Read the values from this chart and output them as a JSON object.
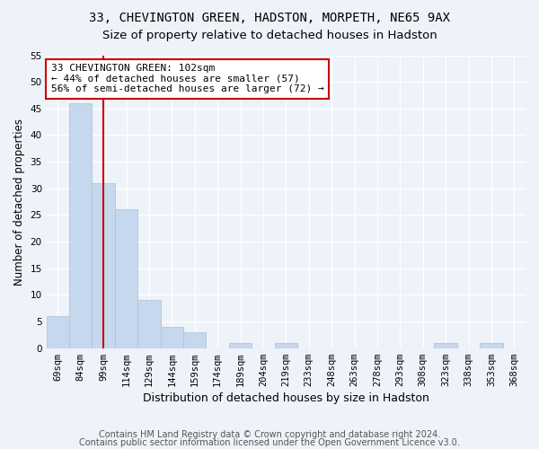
{
  "title1": "33, CHEVINGTON GREEN, HADSTON, MORPETH, NE65 9AX",
  "title2": "Size of property relative to detached houses in Hadston",
  "xlabel": "Distribution of detached houses by size in Hadston",
  "ylabel": "Number of detached properties",
  "categories": [
    "69sqm",
    "84sqm",
    "99sqm",
    "114sqm",
    "129sqm",
    "144sqm",
    "159sqm",
    "174sqm",
    "189sqm",
    "204sqm",
    "219sqm",
    "233sqm",
    "248sqm",
    "263sqm",
    "278sqm",
    "293sqm",
    "308sqm",
    "323sqm",
    "338sqm",
    "353sqm",
    "368sqm"
  ],
  "values": [
    6,
    46,
    31,
    26,
    9,
    4,
    3,
    0,
    1,
    0,
    1,
    0,
    0,
    0,
    0,
    0,
    0,
    1,
    0,
    1,
    0
  ],
  "bar_color": "#c5d8ed",
  "bar_edgecolor": "#aac0d8",
  "annotation_title": "33 CHEVINGTON GREEN: 102sqm",
  "annotation_line1": "← 44% of detached houses are smaller (57)",
  "annotation_line2": "56% of semi-detached houses are larger (72) →",
  "annotation_box_facecolor": "#ffffff",
  "annotation_box_edgecolor": "#cc0000",
  "vline_color": "#cc0000",
  "vline_x_index": 2,
  "ylim": [
    0,
    55
  ],
  "yticks": [
    0,
    5,
    10,
    15,
    20,
    25,
    30,
    35,
    40,
    45,
    50,
    55
  ],
  "footer1": "Contains HM Land Registry data © Crown copyright and database right 2024.",
  "footer2": "Contains public sector information licensed under the Open Government Licence v3.0.",
  "bg_color": "#eef2f9",
  "grid_color": "#ffffff",
  "title1_fontsize": 10,
  "title2_fontsize": 9.5,
  "xlabel_fontsize": 9,
  "ylabel_fontsize": 8.5,
  "tick_fontsize": 7.5,
  "footer_fontsize": 7,
  "annot_fontsize": 8
}
